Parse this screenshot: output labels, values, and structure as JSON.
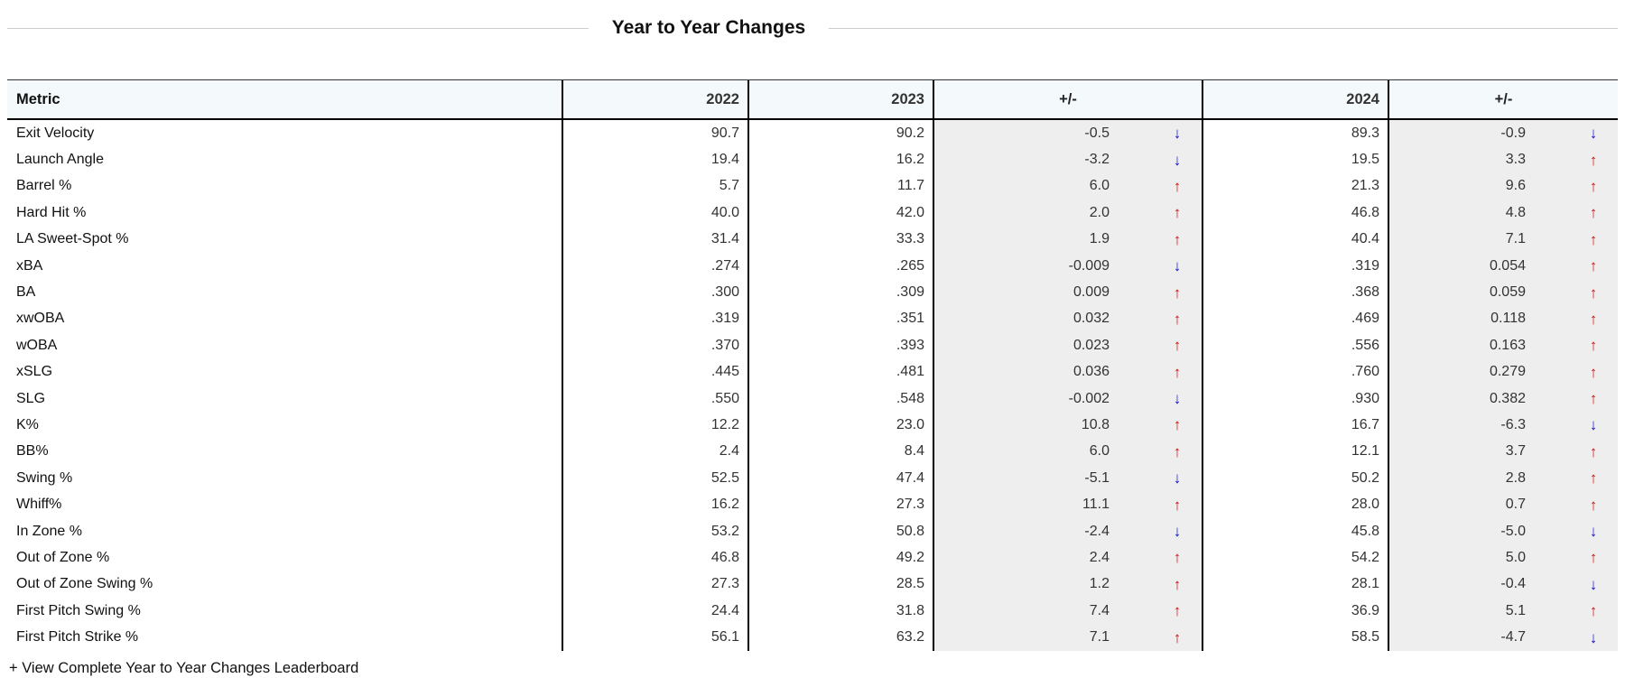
{
  "title": "Year to Year Changes",
  "icons": {
    "up_arrow": "↑",
    "down_arrow": "↓"
  },
  "colors": {
    "up_arrow": "#cc1111",
    "down_arrow": "#1111cc",
    "header_bg": "#f4fafb",
    "pm_col_bg": "#eeeeee"
  },
  "table": {
    "headers": {
      "metric": "Metric",
      "y2022": "2022",
      "y2023": "2023",
      "pm1": "+/-",
      "y2024": "2024",
      "pm2": "+/-"
    },
    "rows": [
      {
        "metric": "Exit Velocity",
        "y2022": "90.7",
        "y2023": "90.2",
        "diff1": "-0.5",
        "dir1": "down",
        "y2024": "89.3",
        "diff2": "-0.9",
        "dir2": "down"
      },
      {
        "metric": "Launch Angle",
        "y2022": "19.4",
        "y2023": "16.2",
        "diff1": "-3.2",
        "dir1": "down",
        "y2024": "19.5",
        "diff2": "3.3",
        "dir2": "up"
      },
      {
        "metric": "Barrel %",
        "y2022": "5.7",
        "y2023": "11.7",
        "diff1": "6.0",
        "dir1": "up",
        "y2024": "21.3",
        "diff2": "9.6",
        "dir2": "up"
      },
      {
        "metric": "Hard Hit %",
        "y2022": "40.0",
        "y2023": "42.0",
        "diff1": "2.0",
        "dir1": "up",
        "y2024": "46.8",
        "diff2": "4.8",
        "dir2": "up"
      },
      {
        "metric": "LA Sweet-Spot %",
        "y2022": "31.4",
        "y2023": "33.3",
        "diff1": "1.9",
        "dir1": "up",
        "y2024": "40.4",
        "diff2": "7.1",
        "dir2": "up"
      },
      {
        "metric": "xBA",
        "y2022": ".274",
        "y2023": ".265",
        "diff1": "-0.009",
        "dir1": "down",
        "y2024": ".319",
        "diff2": "0.054",
        "dir2": "up"
      },
      {
        "metric": "BA",
        "y2022": ".300",
        "y2023": ".309",
        "diff1": "0.009",
        "dir1": "up",
        "y2024": ".368",
        "diff2": "0.059",
        "dir2": "up"
      },
      {
        "metric": "xwOBA",
        "y2022": ".319",
        "y2023": ".351",
        "diff1": "0.032",
        "dir1": "up",
        "y2024": ".469",
        "diff2": "0.118",
        "dir2": "up"
      },
      {
        "metric": "wOBA",
        "y2022": ".370",
        "y2023": ".393",
        "diff1": "0.023",
        "dir1": "up",
        "y2024": ".556",
        "diff2": "0.163",
        "dir2": "up"
      },
      {
        "metric": "xSLG",
        "y2022": ".445",
        "y2023": ".481",
        "diff1": "0.036",
        "dir1": "up",
        "y2024": ".760",
        "diff2": "0.279",
        "dir2": "up"
      },
      {
        "metric": "SLG",
        "y2022": ".550",
        "y2023": ".548",
        "diff1": "-0.002",
        "dir1": "down",
        "y2024": ".930",
        "diff2": "0.382",
        "dir2": "up"
      },
      {
        "metric": "K%",
        "y2022": "12.2",
        "y2023": "23.0",
        "diff1": "10.8",
        "dir1": "up",
        "y2024": "16.7",
        "diff2": "-6.3",
        "dir2": "down"
      },
      {
        "metric": "BB%",
        "y2022": "2.4",
        "y2023": "8.4",
        "diff1": "6.0",
        "dir1": "up",
        "y2024": "12.1",
        "diff2": "3.7",
        "dir2": "up"
      },
      {
        "metric": "Swing %",
        "y2022": "52.5",
        "y2023": "47.4",
        "diff1": "-5.1",
        "dir1": "down",
        "y2024": "50.2",
        "diff2": "2.8",
        "dir2": "up"
      },
      {
        "metric": "Whiff%",
        "y2022": "16.2",
        "y2023": "27.3",
        "diff1": "11.1",
        "dir1": "up",
        "y2024": "28.0",
        "diff2": "0.7",
        "dir2": "up"
      },
      {
        "metric": "In Zone %",
        "y2022": "53.2",
        "y2023": "50.8",
        "diff1": "-2.4",
        "dir1": "down",
        "y2024": "45.8",
        "diff2": "-5.0",
        "dir2": "down"
      },
      {
        "metric": "Out of Zone %",
        "y2022": "46.8",
        "y2023": "49.2",
        "diff1": "2.4",
        "dir1": "up",
        "y2024": "54.2",
        "diff2": "5.0",
        "dir2": "up"
      },
      {
        "metric": "Out of Zone Swing %",
        "y2022": "27.3",
        "y2023": "28.5",
        "diff1": "1.2",
        "dir1": "up",
        "y2024": "28.1",
        "diff2": "-0.4",
        "dir2": "down"
      },
      {
        "metric": "First Pitch Swing %",
        "y2022": "24.4",
        "y2023": "31.8",
        "diff1": "7.4",
        "dir1": "up",
        "y2024": "36.9",
        "diff2": "5.1",
        "dir2": "up"
      },
      {
        "metric": "First Pitch Strike %",
        "y2022": "56.1",
        "y2023": "63.2",
        "diff1": "7.1",
        "dir1": "up",
        "y2024": "58.5",
        "diff2": "-4.7",
        "dir2": "down"
      }
    ]
  },
  "footer": {
    "link_label": "+ View Complete Year to Year Changes Leaderboard"
  }
}
